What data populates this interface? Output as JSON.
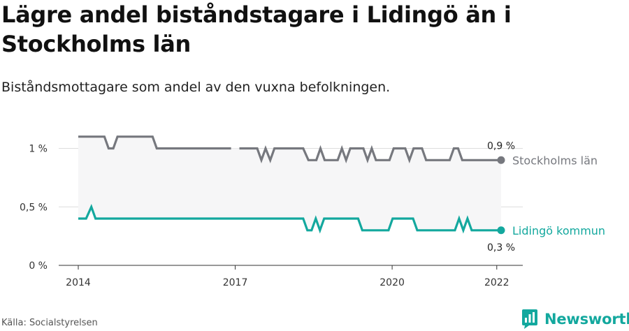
{
  "title": "Lägre andel biståndstagare i Lidingö än i Stockholms län",
  "subtitle": "Biståndsmottagare som andel av den vuxna befolkningen.",
  "source": "Källa: Socialstyrelsen",
  "brand": {
    "name": "Newsworthy",
    "color": "#13a89e",
    "icon": "newsworthy-logo-icon"
  },
  "chart_data": {
    "type": "line",
    "x_label": "",
    "y_label": "",
    "x_ticks": [
      "2014",
      "2017",
      "2020",
      "2022"
    ],
    "x_range": [
      2014,
      2022.083
    ],
    "y_ticks": [
      "0 %",
      "0,5 %",
      "1 %"
    ],
    "y_tick_values": [
      0,
      0.5,
      1
    ],
    "y_range": [
      0,
      1.05
    ],
    "grid": "horizontal",
    "series": [
      {
        "name": "Stockholms län",
        "color": "#76787e",
        "end_value_label": "0,9 %",
        "points": [
          [
            2014.0,
            1.1
          ],
          [
            2014.5,
            1.1
          ],
          [
            2014.58,
            1.0
          ],
          [
            2014.67,
            1.0
          ],
          [
            2014.75,
            1.1
          ],
          [
            2015.42,
            1.1
          ],
          [
            2015.5,
            1.0
          ],
          [
            2016.92,
            1.0
          ],
          [
            null,
            null
          ],
          [
            2017.08,
            1.0
          ],
          [
            2017.42,
            1.0
          ],
          [
            2017.5,
            0.9
          ],
          [
            2017.58,
            1.0
          ],
          [
            2017.67,
            0.9
          ],
          [
            2017.75,
            1.0
          ],
          [
            2018.3,
            1.0
          ],
          [
            2018.4,
            0.9
          ],
          [
            2018.55,
            0.9
          ],
          [
            2018.63,
            1.0
          ],
          [
            2018.71,
            0.9
          ],
          [
            2018.96,
            0.9
          ],
          [
            2019.04,
            1.0
          ],
          [
            2019.12,
            0.9
          ],
          [
            2019.2,
            1.0
          ],
          [
            2019.45,
            1.0
          ],
          [
            2019.53,
            0.9
          ],
          [
            2019.61,
            1.0
          ],
          [
            2019.69,
            0.9
          ],
          [
            2019.95,
            0.9
          ],
          [
            2020.03,
            1.0
          ],
          [
            2020.25,
            1.0
          ],
          [
            2020.33,
            0.9
          ],
          [
            2020.41,
            1.0
          ],
          [
            2020.57,
            1.0
          ],
          [
            2020.65,
            0.9
          ],
          [
            2021.1,
            0.9
          ],
          [
            2021.18,
            1.0
          ],
          [
            2021.26,
            1.0
          ],
          [
            2021.34,
            0.9
          ],
          [
            2022.083,
            0.9
          ]
        ]
      },
      {
        "name": "Lidingö kommun",
        "color": "#13a89e",
        "end_value_label": "0,3 %",
        "points": [
          [
            2014.0,
            0.4
          ],
          [
            2014.15,
            0.4
          ],
          [
            2014.25,
            0.5
          ],
          [
            2014.33,
            0.4
          ],
          [
            2018.3,
            0.4
          ],
          [
            2018.38,
            0.3
          ],
          [
            2018.46,
            0.3
          ],
          [
            2018.54,
            0.4
          ],
          [
            2018.62,
            0.3
          ],
          [
            2018.7,
            0.4
          ],
          [
            2019.35,
            0.4
          ],
          [
            2019.43,
            0.3
          ],
          [
            2019.93,
            0.3
          ],
          [
            2020.01,
            0.4
          ],
          [
            2020.4,
            0.4
          ],
          [
            2020.48,
            0.3
          ],
          [
            2021.2,
            0.3
          ],
          [
            2021.28,
            0.4
          ],
          [
            2021.36,
            0.3
          ],
          [
            2021.44,
            0.4
          ],
          [
            2021.52,
            0.3
          ],
          [
            2022.083,
            0.3
          ]
        ]
      }
    ]
  }
}
